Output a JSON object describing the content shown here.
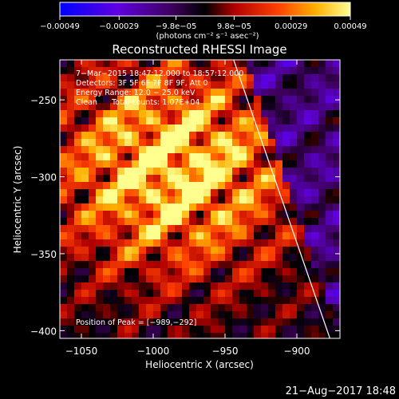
{
  "chart_data": {
    "type": "heatmap",
    "title": "Reconstructed RHESSI Image",
    "xlabel": "Heliocentric X (arcsec)",
    "ylabel": "Heliocentric Y (arcsec)",
    "xlim": [
      -1065,
      -870
    ],
    "ylim": [
      -405,
      -224
    ],
    "x_ticks": [
      -1050,
      -1000,
      -950,
      -900
    ],
    "x_tick_labels": [
      "−1050",
      "−1000",
      "−950",
      "−900"
    ],
    "y_ticks": [
      -250,
      -300,
      -350,
      -400
    ],
    "y_tick_labels": [
      "−250",
      "−300",
      "−350",
      "−400"
    ],
    "colorbar": {
      "range": [
        -0.00049,
        0.00049
      ],
      "ticks": [
        -0.00049,
        -0.00029,
        -9.8e-05,
        9.8e-05,
        0.00029,
        0.00049
      ],
      "tick_labels": [
        "−0.00049",
        "−0.00029",
        "−9.8e−05",
        "9.8e−05",
        "0.00029",
        "0.00049"
      ],
      "unit_label": "(photons cm⁻² s⁻¹ asec⁻²)",
      "colors": [
        "#0000ff",
        "#8000c0",
        "#000000",
        "#c00000",
        "#ff6000",
        "#ffff80"
      ]
    },
    "annotations": [
      "7−Mar−2015 18:47:12.000 to 18:57:12.000",
      "Detectors: 3F 5F 6F 7F 8F 9F, Att 0",
      "Energy Range: 12.0 − 25.0 keV",
      "Clean      Total counts: 1.07E+04"
    ],
    "peak_label": "Position of Peak = [−989,−292]",
    "peak": [
      -989,
      -292
    ],
    "limb_line": {
      "x": [
        -944,
        -877
      ],
      "y": [
        -224,
        -405
      ]
    },
    "timestamp": "21−Aug−2017 18:48"
  }
}
